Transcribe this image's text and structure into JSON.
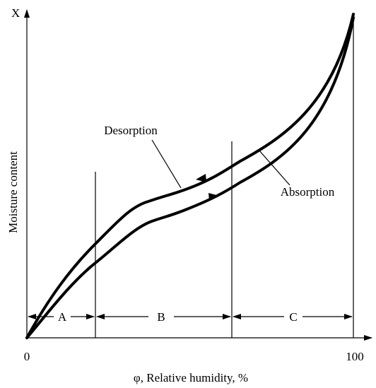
{
  "axes": {
    "y_symbol": "X",
    "y_title": "Moisture content",
    "x_title": "φ, Relative humidity, %",
    "x_start": "0",
    "x_end": "100"
  },
  "curves": {
    "desorption": "Desorption",
    "absorption": "Absorption"
  },
  "regions": [
    "A",
    "B",
    "C"
  ]
}
